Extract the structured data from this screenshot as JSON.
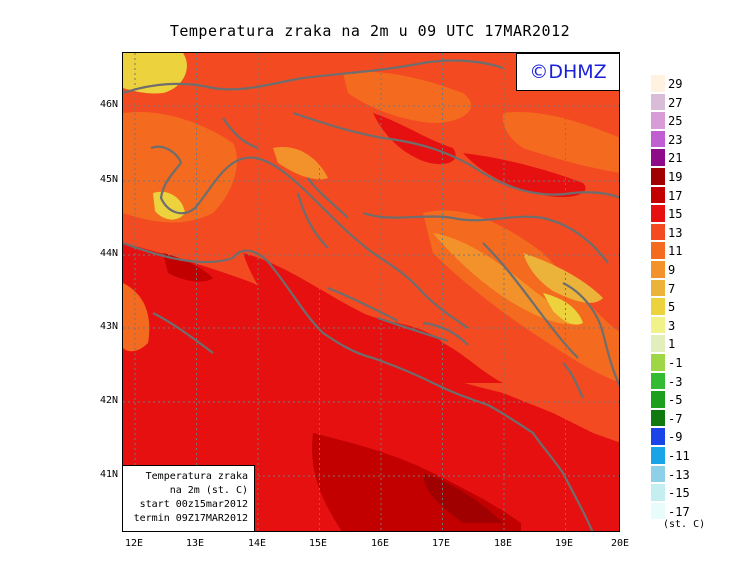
{
  "title": "Temperatura zraka na 2m u 09 UTC 17MAR2012",
  "logo": "©DHMZ",
  "info": {
    "line1": "Temperatura zraka",
    "line2": "na 2m (st. C)",
    "line3": "start 00z15mar2012",
    "line4": "termin 09Z17MAR2012"
  },
  "axes": {
    "x_labels": [
      "12E",
      "13E",
      "14E",
      "15E",
      "16E",
      "17E",
      "18E",
      "19E",
      "20E"
    ],
    "y_labels": [
      "46N",
      "45N",
      "44N",
      "43N",
      "42N",
      "41N"
    ]
  },
  "legend": {
    "units": "(st. C)",
    "labels": [
      "29",
      "27",
      "25",
      "23",
      "21",
      "19",
      "17",
      "15",
      "13",
      "11",
      "9",
      "7",
      "5",
      "3",
      "1",
      "-1",
      "-3",
      "-5",
      "-7",
      "-9",
      "-11",
      "-13",
      "-15",
      "-17"
    ],
    "colors": [
      "#fff2e0",
      "#d8bcd8",
      "#d89cd8",
      "#c060d0",
      "#8e0a88",
      "#a00000",
      "#c20000",
      "#e61010",
      "#f34a22",
      "#f46a1f",
      "#f3922a",
      "#ecb33a",
      "#ecd23c",
      "#f2f28a",
      "#e2eebc",
      "#9ed646",
      "#34bb34",
      "#1ca01c",
      "#107a10",
      "#1a44e8",
      "#1aa4e8",
      "#8ed0e8",
      "#c4eef0",
      "#e8fcfc"
    ]
  }
}
